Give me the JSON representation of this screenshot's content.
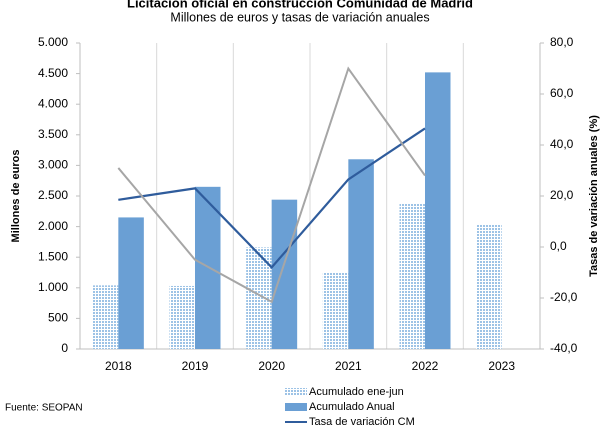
{
  "chart_data": {
    "type": "bar",
    "title": "Licitación oficial en construcción Comunidad de Madrid",
    "subtitle": "Millones de euros y tasas de variación anuales",
    "y_label": "Millones de euros",
    "y2_label": "Tasas de variación anuales (%)",
    "source": "Fuente: SEOPAN",
    "categories": [
      "2018",
      "2019",
      "2020",
      "2021",
      "2022",
      "2023"
    ],
    "series": [
      {
        "name": "Acumulado ene-jun",
        "type": "bar",
        "color": "#9dc3e6",
        "values": [
          1040,
          1030,
          1660,
          1250,
          2370,
          2030
        ]
      },
      {
        "name": "Acumulado Anual",
        "type": "bar",
        "color": "#6a9fd4",
        "values": [
          2150,
          2650,
          2440,
          3100,
          4520,
          null
        ]
      },
      {
        "name": "Tasa de variación CM",
        "type": "line",
        "axis": "y2",
        "color": "#2f5c9c",
        "values": [
          18.5,
          23,
          -8,
          26.5,
          46.5,
          null
        ]
      },
      {
        "type": "line",
        "axis": "y2",
        "color": "#a6a6a6",
        "values": [
          31,
          -5,
          -21.5,
          70,
          28,
          null
        ]
      }
    ],
    "ylim": [
      0,
      5000
    ],
    "yticks": [
      0,
      500,
      {
        "value": 1000,
        "label": "1.000"
      },
      {
        "value": 1500,
        "label": "1.500"
      },
      {
        "value": 2000,
        "label": "2.000"
      },
      {
        "value": 2500,
        "label": "2.500"
      },
      {
        "value": 3000,
        "label": "3.000"
      },
      {
        "value": 3500,
        "label": "3.500"
      },
      {
        "value": 4000,
        "label": "4.000"
      },
      {
        "value": 4500,
        "label": "4.500"
      },
      {
        "value": 5000,
        "label": "5.000"
      }
    ],
    "y2lim": [
      -40,
      80
    ],
    "y2ticks": [
      {
        "value": -40,
        "label": "-40,0"
      },
      {
        "value": -20,
        "label": "-20,0"
      },
      {
        "value": 0,
        "label": "0,0"
      },
      {
        "value": 20,
        "label": "20,0"
      },
      {
        "value": 40,
        "label": "40,0"
      },
      {
        "value": 60,
        "label": "60,0"
      },
      {
        "value": 80,
        "label": "80,0"
      }
    ],
    "legend": "bottom"
  }
}
